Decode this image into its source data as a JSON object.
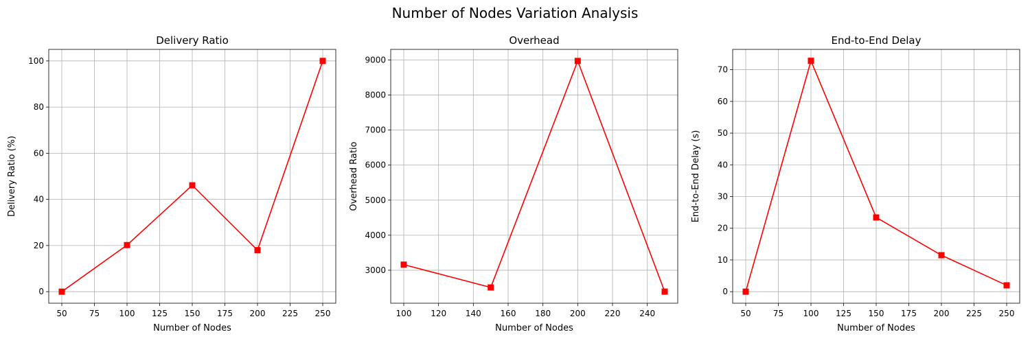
{
  "figure": {
    "title": "Number of Nodes Variation Analysis"
  },
  "chart_data": [
    {
      "type": "line",
      "title": "Delivery Ratio",
      "xlabel": "Number of Nodes",
      "ylabel": "Delivery Ratio (%)",
      "x": [
        50,
        100,
        150,
        200,
        250
      ],
      "y": [
        0,
        20.2,
        46.1,
        18.0,
        100
      ],
      "xlim": [
        40,
        260
      ],
      "ylim": [
        -5,
        105
      ],
      "xticks": [
        50,
        75,
        100,
        125,
        150,
        175,
        200,
        225,
        250
      ],
      "yticks": [
        0,
        20,
        40,
        60,
        80,
        100
      ],
      "marker": "square",
      "color": "#ff0000",
      "grid": true
    },
    {
      "type": "line",
      "title": "Overhead",
      "xlabel": "Number of Nodes",
      "ylabel": "Overhead Ratio",
      "x": [
        100,
        150,
        200,
        250
      ],
      "y": [
        3160,
        2510,
        8970,
        2390
      ],
      "xlim": [
        92.5,
        257.5
      ],
      "ylim": [
        2060,
        9300
      ],
      "xticks": [
        100,
        120,
        140,
        160,
        180,
        200,
        220,
        240
      ],
      "yticks": [
        3000,
        4000,
        5000,
        6000,
        7000,
        8000,
        9000
      ],
      "marker": "square",
      "color": "#ff0000",
      "grid": true
    },
    {
      "type": "line",
      "title": "End-to-End Delay",
      "xlabel": "Number of Nodes",
      "ylabel": "End-to-End Delay (s)",
      "x": [
        50,
        100,
        150,
        200,
        250
      ],
      "y": [
        0,
        72.8,
        23.4,
        11.5,
        2.0
      ],
      "xlim": [
        40,
        260
      ],
      "ylim": [
        -3.64,
        76.4
      ],
      "xticks": [
        50,
        75,
        100,
        125,
        150,
        175,
        200,
        225,
        250
      ],
      "yticks": [
        0,
        10,
        20,
        30,
        40,
        50,
        60,
        70
      ],
      "marker": "square",
      "color": "#ff0000",
      "grid": true
    }
  ]
}
